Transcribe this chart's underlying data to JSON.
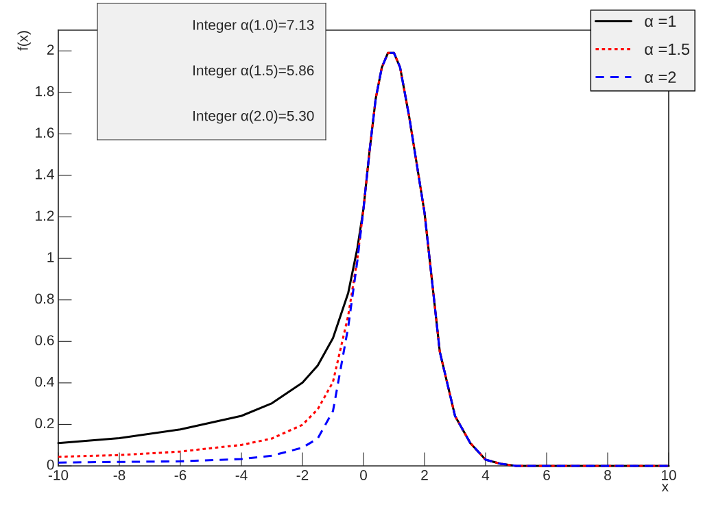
{
  "chart_data": {
    "type": "line",
    "xlabel": "x",
    "ylabel": "f(x)",
    "xlim": [
      -10,
      10
    ],
    "xticks": [
      -10,
      -8,
      -6,
      -4,
      -2,
      0,
      2,
      4,
      6,
      8,
      10
    ],
    "ylim": [
      0,
      2.1
    ],
    "yticks": [
      0,
      0.2,
      0.4,
      0.6,
      0.8,
      1,
      1.2,
      1.4,
      1.6,
      1.8,
      2
    ],
    "grid": false,
    "legend": "top right",
    "marker": "none",
    "annotations": [
      "Integer α(1.0)=7.13",
      "Integer α(1.5)=5.86",
      "Integer α(2.0)=5.30"
    ],
    "series": [
      {
        "name": "α =1",
        "color": "#000000",
        "line_style": "solid",
        "x": [
          -10,
          -8,
          -6,
          -4,
          -3,
          -2,
          -1.5,
          -1,
          -0.5,
          -0.2,
          0,
          0.2,
          0.4,
          0.6,
          0.8,
          1,
          1.2,
          1.5,
          2,
          2.5,
          3,
          3.5,
          4,
          4.5,
          5,
          6,
          8,
          10
        ],
        "values": [
          0.11,
          0.134,
          0.176,
          0.241,
          0.302,
          0.401,
          0.484,
          0.616,
          0.834,
          1.05,
          1.24,
          1.52,
          1.77,
          1.92,
          1.99,
          1.99,
          1.92,
          1.68,
          1.22,
          0.55,
          0.24,
          0.11,
          0.03,
          0.01,
          0,
          0,
          0,
          0
        ]
      },
      {
        "name": "α =1.5",
        "color": "#ff0000",
        "line_style": "dotted",
        "x": [
          -10,
          -8,
          -6,
          -4,
          -3,
          -2,
          -1.5,
          -1,
          -0.5,
          -0.2,
          0,
          0.2,
          0.4,
          0.6,
          0.8,
          1,
          1.2,
          1.5,
          2,
          2.5,
          3,
          3.5,
          4,
          4.5,
          5,
          6,
          8,
          10
        ],
        "values": [
          0.044,
          0.052,
          0.069,
          0.101,
          0.132,
          0.198,
          0.273,
          0.405,
          0.725,
          1.0,
          1.24,
          1.52,
          1.77,
          1.92,
          1.99,
          1.99,
          1.92,
          1.68,
          1.22,
          0.55,
          0.24,
          0.11,
          0.03,
          0.01,
          0,
          0,
          0,
          0
        ]
      },
      {
        "name": "α =2",
        "color": "#0000ff",
        "line_style": "dashed",
        "x": [
          -10,
          -8,
          -6,
          -4,
          -3,
          -2,
          -1.5,
          -1,
          -0.5,
          -0.2,
          0,
          0.2,
          0.4,
          0.6,
          0.8,
          1,
          1.2,
          1.5,
          2,
          2.5,
          3,
          3.5,
          4,
          4.5,
          5,
          6,
          8,
          10
        ],
        "values": [
          0.016,
          0.019,
          0.022,
          0.033,
          0.049,
          0.088,
          0.132,
          0.264,
          0.67,
          0.99,
          1.24,
          1.52,
          1.77,
          1.92,
          1.99,
          1.99,
          1.92,
          1.68,
          1.22,
          0.55,
          0.24,
          0.11,
          0.03,
          0.01,
          0,
          0,
          0,
          0
        ]
      }
    ]
  }
}
